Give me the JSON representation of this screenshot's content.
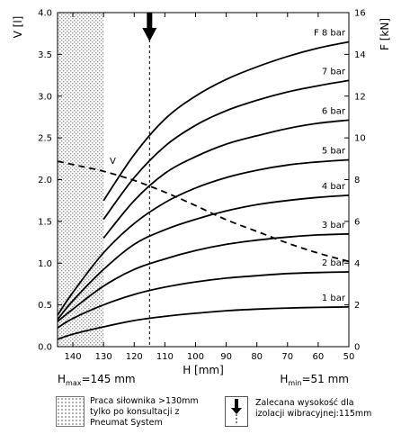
{
  "chart_data": {
    "type": "line",
    "y_left_label": "V [l]",
    "y_right_label": "F [kN]",
    "xlabel": "H [mm]",
    "x_range": [
      145,
      50
    ],
    "x_ticks": [
      140,
      130,
      120,
      110,
      100,
      90,
      80,
      70,
      60,
      50
    ],
    "y_left_range": [
      0,
      4.0
    ],
    "y_left_ticks": [
      "0.0",
      "0.5",
      "1.0",
      "1.5",
      "2.0",
      "2.5",
      "3.0",
      "3.5",
      "4.0"
    ],
    "y_right_range": [
      0,
      16
    ],
    "y_right_ticks": [
      "0",
      "2",
      "4",
      "6",
      "8",
      "10",
      "12",
      "14",
      "16"
    ],
    "grid": false,
    "hmax_prefix": "H",
    "hmax_sub": "max",
    "hmax_value": "=145 mm",
    "hmin_prefix": "H",
    "hmin_sub": "min",
    "hmin_value": "=51 mm",
    "shaded_region_x": [
      145,
      130
    ],
    "recommended_height_x": 115,
    "force_series": [
      {
        "name": "1 bar",
        "x": [
          145,
          140,
          130,
          120,
          110,
          100,
          90,
          80,
          70,
          60,
          50
        ],
        "y": [
          0.35,
          0.6,
          0.95,
          1.25,
          1.45,
          1.6,
          1.72,
          1.8,
          1.85,
          1.88,
          1.9
        ]
      },
      {
        "name": "2 bar",
        "x": [
          145,
          140,
          130,
          120,
          110,
          100,
          90,
          80,
          70,
          60,
          50
        ],
        "y": [
          0.9,
          1.35,
          2.0,
          2.5,
          2.85,
          3.1,
          3.28,
          3.4,
          3.5,
          3.55,
          3.58
        ]
      },
      {
        "name": "3 bar",
        "x": [
          145,
          140,
          130,
          120,
          110,
          100,
          90,
          80,
          70,
          60,
          50
        ],
        "y": [
          1.2,
          1.8,
          2.9,
          3.7,
          4.2,
          4.6,
          4.9,
          5.1,
          5.25,
          5.35,
          5.4
        ]
      },
      {
        "name": "4 bar",
        "x": [
          145,
          140,
          130,
          120,
          110,
          100,
          90,
          80,
          70,
          60,
          50
        ],
        "y": [
          1.3,
          2.2,
          3.7,
          4.9,
          5.6,
          6.1,
          6.5,
          6.8,
          7.0,
          7.15,
          7.25
        ]
      },
      {
        "name": "5 bar",
        "x": [
          145,
          140,
          130,
          120,
          110,
          100,
          90,
          80,
          70,
          60,
          50
        ],
        "y": [
          1.5,
          2.6,
          4.5,
          5.9,
          6.9,
          7.6,
          8.1,
          8.45,
          8.7,
          8.85,
          8.95
        ]
      },
      {
        "name": "6 bar",
        "x": [
          130,
          120,
          110,
          100,
          90,
          80,
          70,
          60,
          50
        ],
        "y": [
          5.2,
          7.0,
          8.3,
          9.1,
          9.7,
          10.1,
          10.45,
          10.7,
          10.85
        ]
      },
      {
        "name": "7 bar",
        "x": [
          130,
          120,
          110,
          100,
          90,
          80,
          70,
          60,
          50
        ],
        "y": [
          6.1,
          8.1,
          9.6,
          10.6,
          11.3,
          11.8,
          12.2,
          12.5,
          12.75
        ]
      },
      {
        "name": "F 8 bar",
        "x": [
          130,
          120,
          110,
          100,
          90,
          80,
          70,
          60,
          50
        ],
        "y": [
          7.0,
          9.2,
          10.9,
          12.0,
          12.8,
          13.4,
          13.9,
          14.3,
          14.6
        ]
      }
    ],
    "volume_series": {
      "name": "V",
      "x": [
        145,
        140,
        130,
        120,
        110,
        100,
        90,
        80,
        70,
        60,
        50
      ],
      "y": [
        2.22,
        2.18,
        2.1,
        1.99,
        1.85,
        1.69,
        1.52,
        1.38,
        1.24,
        1.12,
        1.02
      ]
    }
  },
  "legend": {
    "shaded_text": [
      "Praca siłownika >130mm",
      "tylko po konsultacji z",
      "Pneumat System"
    ],
    "arrow_text": [
      "Zalecana wysokość dla",
      "izolacji wibracyjnej:115mm"
    ]
  }
}
